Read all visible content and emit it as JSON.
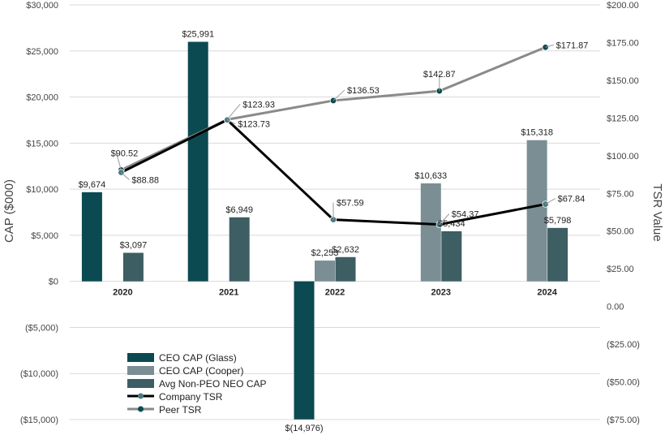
{
  "chart_data": {
    "type": "bar",
    "categories": [
      "2020",
      "2021",
      "2022",
      "2023",
      "2024"
    ],
    "ylabel": "CAP ($000)",
    "y2label": "TSR Value",
    "ylim": [
      -15000,
      30000
    ],
    "y2lim": [
      -75,
      200
    ],
    "yticks": [
      "($15,000)",
      "($10,000)",
      "($5,000)",
      "$0",
      "$5,000",
      "$10,000",
      "$15,000",
      "$20,000",
      "$25,000",
      "$30,000"
    ],
    "y2ticks": [
      "($75.00)",
      "($50.00)",
      "($25.00)",
      "0.00",
      "$25.00",
      "$50.00",
      "$75.00",
      "$100.00",
      "$125.00",
      "$150.00",
      "$175.00",
      "$200.00"
    ],
    "legend_position": "bottom-left",
    "grid": true,
    "bar_series": [
      {
        "name": "CEO CAP (Glass)",
        "color": "#0b4a50",
        "values": [
          9674,
          25991,
          -14976,
          null,
          null
        ],
        "labels": [
          "$9,674",
          "$25,991",
          "$(14,976)",
          "",
          ""
        ]
      },
      {
        "name": "CEO CAP (Cooper)",
        "color": "#7a8e94",
        "values": [
          null,
          null,
          2253,
          10633,
          15318
        ],
        "labels": [
          "",
          "",
          "$2,253",
          "$10,633",
          "$15,318"
        ]
      },
      {
        "name": "Avg Non-PEO NEO CAP",
        "color": "#3d5e63",
        "values": [
          3097,
          6949,
          2632,
          5434,
          5798
        ],
        "labels": [
          "$3,097",
          "$6,949",
          "$2,632",
          "$5,434",
          "$5,798"
        ]
      }
    ],
    "line_series": [
      {
        "name": "Company TSR",
        "color": "#000000",
        "marker": "#4a7a80",
        "values": [
          88.88,
          123.73,
          57.59,
          54.37,
          67.84
        ],
        "labels": [
          "$88.88",
          "$123.73",
          "$57.59",
          "$54.37",
          "$67.84"
        ]
      },
      {
        "name": "Peer TSR",
        "color": "#8a8a8a",
        "marker": "#0b4a50",
        "values": [
          90.52,
          123.93,
          136.53,
          142.87,
          171.87
        ],
        "labels": [
          "$90.52",
          "$123.93",
          "$136.53",
          "$142.87",
          "$171.87"
        ]
      }
    ]
  }
}
